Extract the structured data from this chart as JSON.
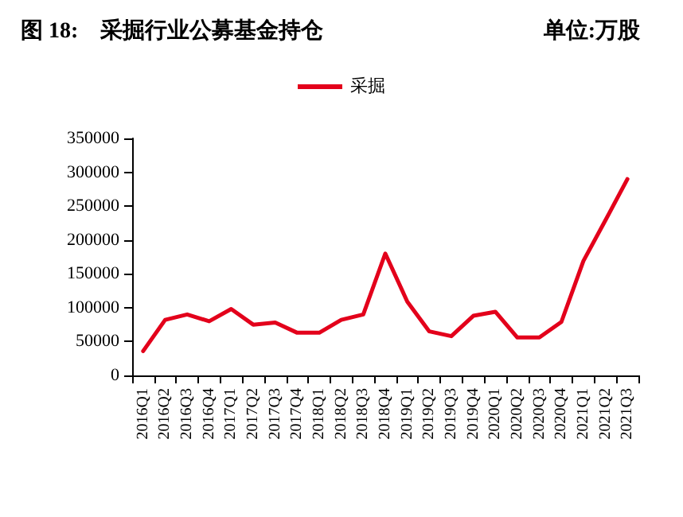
{
  "chart_data": {
    "type": "line",
    "title": "图 18:    采掘行业公募基金持仓",
    "subtitle": "单位:万股",
    "categories": [
      "2016Q1",
      "2016Q2",
      "2016Q3",
      "2016Q4",
      "2017Q1",
      "2017Q2",
      "2017Q3",
      "2017Q4",
      "2018Q1",
      "2018Q2",
      "2018Q3",
      "2018Q4",
      "2019Q1",
      "2019Q2",
      "2019Q3",
      "2019Q4",
      "2020Q1",
      "2020Q2",
      "2020Q3",
      "2020Q4",
      "2021Q1",
      "2021Q2",
      "2021Q3"
    ],
    "series": [
      {
        "name": "采掘",
        "color": "#e3001b",
        "values": [
          36000,
          82000,
          90000,
          80000,
          98000,
          75000,
          78000,
          63000,
          63000,
          82000,
          90000,
          180000,
          109000,
          65000,
          58000,
          88000,
          94000,
          56000,
          56000,
          79000,
          169000,
          229000,
          290000
        ]
      }
    ],
    "ylim": [
      0,
      350000
    ],
    "yticks": [
      0,
      50000,
      100000,
      150000,
      200000,
      250000,
      300000,
      350000
    ],
    "grid": false,
    "legend": "top",
    "marker": "none",
    "line_style": "solid"
  }
}
